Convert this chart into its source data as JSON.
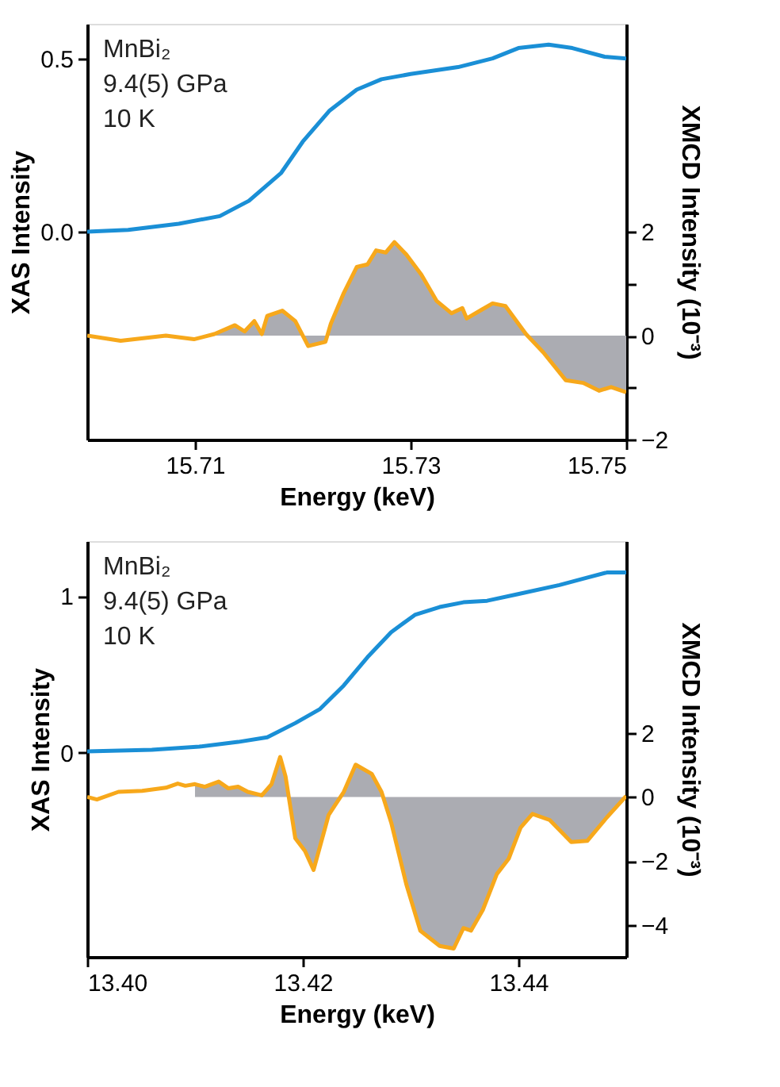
{
  "chart_data": [
    {
      "type": "line",
      "xlabel": "Energy (keV)",
      "ylabel": "XAS Intensity",
      "y2label": "XMCD Intensity (10⁻³)",
      "annotations": [
        "MnBi₂",
        "9.4(5) GPa",
        "10 K"
      ],
      "xlim": [
        15.7,
        15.75
      ],
      "xticks": [
        15.71,
        15.73,
        15.75
      ],
      "ylim": [
        -0.6,
        0.6
      ],
      "yticks": [
        {
          "value": 0,
          "label": "0.0"
        },
        0.5
      ],
      "y2lim": [
        -2,
        6
      ],
      "y2ticks": [
        {
          "value": -2,
          "label": "−2"
        },
        {
          "value": -1,
          "label": null
        },
        0,
        {
          "value": 1,
          "label": null
        },
        2
      ],
      "series": [
        {
          "axis": "y",
          "color": "#1a8fd6",
          "x": [
            15.7,
            15.7038,
            15.7085,
            15.7123,
            15.715,
            15.718,
            15.72,
            15.7225,
            15.725,
            15.7273,
            15.73,
            15.7344,
            15.7376,
            15.74,
            15.7428,
            15.745,
            15.748,
            15.75
          ],
          "values": [
            0,
            0.005,
            0.023,
            0.045,
            0.089,
            0.17,
            0.26,
            0.35,
            0.41,
            0.44,
            0.455,
            0.475,
            0.5,
            0.53,
            0.54,
            0.53,
            0.505,
            0.5
          ]
        },
        {
          "type": "area",
          "axis": "y2",
          "color": "#abacb2",
          "x": [
            15.7118,
            15.7137,
            15.7146,
            15.7155,
            15.7162,
            15.7167,
            15.7181,
            15.7193,
            15.7205,
            15.7221,
            15.7226,
            15.7238,
            15.725,
            15.726,
            15.7268,
            15.7277,
            15.7285,
            15.7296,
            15.731,
            15.7324,
            15.7338,
            15.7348,
            15.7352,
            15.7366,
            15.7376,
            15.7388,
            15.7407,
            15.7423,
            15.7444,
            15.746,
            15.7475,
            15.7486,
            15.75
          ],
          "values": [
            0.03,
            0.2,
            0.08,
            0.28,
            0.03,
            0.38,
            0.48,
            0.28,
            -0.2,
            -0.12,
            0.23,
            0.82,
            1.32,
            1.37,
            1.64,
            1.6,
            1.8,
            1.56,
            1.17,
            0.67,
            0.43,
            0.53,
            0.33,
            0.5,
            0.62,
            0.57,
            0.03,
            -0.32,
            -0.86,
            -0.91,
            -1.06,
            -0.99,
            -1.09
          ]
        },
        {
          "axis": "y2",
          "color": "#f7a81b",
          "x": [
            15.7,
            15.7031,
            15.7073,
            15.7099,
            15.7118,
            15.7137,
            15.7146,
            15.7155,
            15.7162,
            15.7167,
            15.7181,
            15.7193,
            15.7205,
            15.7221,
            15.7226,
            15.7238,
            15.725,
            15.726,
            15.7268,
            15.7277,
            15.7285,
            15.7296,
            15.731,
            15.7324,
            15.7338,
            15.7348,
            15.7352,
            15.7366,
            15.7376,
            15.7388,
            15.7407,
            15.7423,
            15.7444,
            15.746,
            15.7475,
            15.7486,
            15.75
          ],
          "values": [
            0,
            -0.1,
            0,
            -0.07,
            0.03,
            0.2,
            0.08,
            0.28,
            0.03,
            0.38,
            0.48,
            0.28,
            -0.2,
            -0.12,
            0.23,
            0.82,
            1.32,
            1.37,
            1.64,
            1.6,
            1.8,
            1.56,
            1.17,
            0.67,
            0.43,
            0.53,
            0.33,
            0.5,
            0.62,
            0.57,
            0.03,
            -0.32,
            -0.86,
            -0.91,
            -1.06,
            -0.99,
            -1.09
          ]
        }
      ]
    },
    {
      "type": "line",
      "xlabel": "Energy (keV)",
      "ylabel": "XAS Intensity",
      "y2label": "XMCD Intensity (10⁻³)",
      "annotations": [
        "MnBi₂",
        "9.4(5) GPa",
        "10 K"
      ],
      "xlim": [
        13.4,
        13.45
      ],
      "xticks": [
        {
          "value": 13.4,
          "label": "13.40"
        },
        13.42,
        13.44
      ],
      "ylim": [
        -1.3,
        1.35
      ],
      "yticks": [
        0,
        1
      ],
      "y2lim": [
        -5,
        8
      ],
      "y2ticks": [
        {
          "value": -4,
          "label": "−4"
        },
        {
          "value": -2,
          "label": "−2"
        },
        0,
        2
      ],
      "series": [
        {
          "axis": "y",
          "color": "#1a8fd6",
          "x": [
            13.4,
            13.406,
            13.4104,
            13.414,
            13.4167,
            13.4193,
            13.4216,
            13.4238,
            13.426,
            13.4282,
            13.4304,
            13.4327,
            13.4349,
            13.4371,
            13.4398,
            13.4438,
            13.446,
            13.4482,
            13.45
          ],
          "values": [
            0.01,
            0.02,
            0.04,
            0.07,
            0.1,
            0.19,
            0.28,
            0.43,
            0.61,
            0.77,
            0.88,
            0.93,
            0.96,
            0.97,
            1.01,
            1.07,
            1.11,
            1.15,
            1.15
          ]
        },
        {
          "type": "area",
          "axis": "y2",
          "color": "#abacb2",
          "x": [
            13.41,
            13.4109,
            13.4122,
            13.4131,
            13.414,
            13.4149,
            13.4162,
            13.4171,
            13.4179,
            13.4184,
            13.4193,
            13.4202,
            13.421,
            13.4224,
            13.4238,
            13.4249,
            13.4264,
            13.4273,
            13.4282,
            13.4296,
            13.4309,
            13.4327,
            13.434,
            13.4349,
            13.4356,
            13.4367,
            13.438,
            13.4391,
            13.4402,
            13.4413,
            13.4429,
            13.4449,
            13.4464,
            13.4482,
            13.45
          ],
          "values": [
            0.4,
            0.32,
            0.48,
            0.27,
            0.32,
            0.16,
            0.05,
            0.4,
            1.25,
            0.64,
            -1.29,
            -1.69,
            -2.28,
            -0.56,
            0.16,
            1.01,
            0.72,
            0.16,
            -0.8,
            -2.73,
            -4.18,
            -4.66,
            -4.74,
            -4.1,
            -4.18,
            -3.53,
            -2.41,
            -1.93,
            -0.96,
            -0.53,
            -0.72,
            -1.41,
            -1.37,
            -0.64,
            0.03
          ]
        },
        {
          "axis": "y2",
          "color": "#f7a81b",
          "x": [
            13.4,
            13.4009,
            13.4029,
            13.4051,
            13.4073,
            13.4084,
            13.4091,
            13.41,
            13.4109,
            13.4122,
            13.4131,
            13.414,
            13.4149,
            13.4162,
            13.4171,
            13.4179,
            13.4184,
            13.4193,
            13.4202,
            13.421,
            13.4224,
            13.4238,
            13.4249,
            13.4264,
            13.4273,
            13.4282,
            13.4296,
            13.4309,
            13.4327,
            13.434,
            13.4349,
            13.4356,
            13.4367,
            13.438,
            13.4391,
            13.4402,
            13.4413,
            13.4429,
            13.4449,
            13.4464,
            13.4482,
            13.45
          ],
          "values": [
            0,
            -0.08,
            0.16,
            0.19,
            0.29,
            0.42,
            0.35,
            0.4,
            0.32,
            0.48,
            0.27,
            0.32,
            0.16,
            0.05,
            0.4,
            1.25,
            0.64,
            -1.29,
            -1.69,
            -2.28,
            -0.56,
            0.16,
            1.01,
            0.72,
            0.16,
            -0.8,
            -2.73,
            -4.18,
            -4.66,
            -4.74,
            -4.1,
            -4.18,
            -3.53,
            -2.41,
            -1.93,
            -0.96,
            -0.53,
            -0.72,
            -1.41,
            -1.37,
            -0.64,
            0.03
          ]
        }
      ]
    }
  ]
}
